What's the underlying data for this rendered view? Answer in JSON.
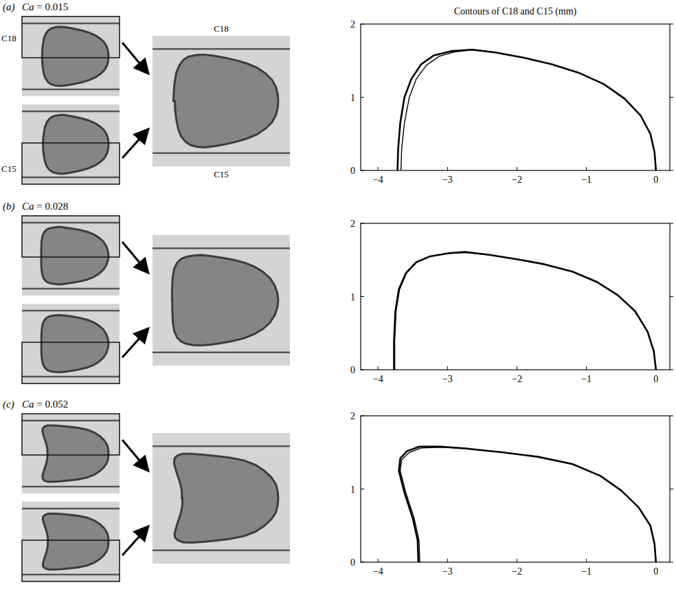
{
  "chart_data": [
    {
      "type": "line",
      "title": "Contours of C18 and C15 (mm)",
      "annotations": [
        "(a)",
        "Ca = 0.015"
      ],
      "xlim": [
        -4.25,
        0.2
      ],
      "ylim": [
        0,
        2
      ],
      "xticks": [
        {
          "value": -4,
          "label": "−4"
        },
        {
          "value": -3,
          "label": "−3"
        },
        {
          "value": -2,
          "label": "−2"
        },
        {
          "value": -1,
          "label": "−1"
        },
        0
      ],
      "yticks": [
        0,
        1,
        2
      ],
      "series": [
        {
          "name": "C18",
          "color": "#000000",
          "x": [
            -3.72,
            -3.71,
            -3.68,
            -3.62,
            -3.52,
            -3.38,
            -3.2,
            -2.95,
            -2.65,
            -2.3,
            -1.9,
            -1.5,
            -1.1,
            -0.75,
            -0.45,
            -0.22,
            -0.08,
            -0.02,
            0
          ],
          "values": [
            0,
            0.3,
            0.65,
            1.0,
            1.25,
            1.45,
            1.57,
            1.63,
            1.65,
            1.61,
            1.54,
            1.45,
            1.33,
            1.18,
            0.98,
            0.75,
            0.5,
            0.25,
            0
          ]
        },
        {
          "name": "C15",
          "color": "#000000",
          "x": [
            -3.67,
            -3.66,
            -3.62,
            -3.55,
            -3.45,
            -3.3,
            -3.12,
            -2.9,
            -2.62,
            -2.3,
            -1.9,
            -1.5,
            -1.1,
            -0.75,
            -0.45,
            -0.22,
            -0.08,
            -0.02,
            0
          ],
          "values": [
            0,
            0.3,
            0.65,
            1.0,
            1.25,
            1.44,
            1.56,
            1.62,
            1.65,
            1.61,
            1.54,
            1.45,
            1.33,
            1.18,
            0.98,
            0.75,
            0.5,
            0.25,
            0
          ]
        }
      ]
    },
    {
      "type": "line",
      "annotations": [
        "(b)",
        "Ca = 0.028"
      ],
      "xlim": [
        -4.25,
        0.2
      ],
      "ylim": [
        0,
        2
      ],
      "xticks": [
        {
          "value": -4,
          "label": "−4"
        },
        {
          "value": -3,
          "label": "−3"
        },
        {
          "value": -2,
          "label": "−2"
        },
        {
          "value": -1,
          "label": "−1"
        },
        0
      ],
      "yticks": [
        0,
        1,
        2
      ],
      "series": [
        {
          "color": "#000000",
          "x": [
            -3.77,
            -3.77,
            -3.75,
            -3.7,
            -3.6,
            -3.45,
            -3.25,
            -3.0,
            -2.75,
            -2.4,
            -2.0,
            -1.6,
            -1.2,
            -0.85,
            -0.55,
            -0.3,
            -0.12,
            -0.03,
            0
          ],
          "values": [
            0,
            0.4,
            0.8,
            1.1,
            1.32,
            1.47,
            1.55,
            1.59,
            1.61,
            1.57,
            1.51,
            1.44,
            1.34,
            1.2,
            1.02,
            0.8,
            0.52,
            0.25,
            0
          ]
        },
        {
          "color": "#000000",
          "x": [
            -3.76,
            -3.76,
            -3.74,
            -3.69,
            -3.59,
            -3.44,
            -3.24,
            -3.0,
            -2.75,
            -2.4,
            -2.0,
            -1.6,
            -1.2,
            -0.85,
            -0.55,
            -0.3,
            -0.12,
            -0.03,
            0
          ],
          "values": [
            0,
            0.4,
            0.8,
            1.1,
            1.32,
            1.47,
            1.55,
            1.59,
            1.6,
            1.57,
            1.51,
            1.44,
            1.34,
            1.2,
            1.02,
            0.8,
            0.52,
            0.25,
            0
          ]
        }
      ]
    },
    {
      "type": "line",
      "annotations": [
        "(c)",
        "Ca = 0.052"
      ],
      "xlim": [
        -4.25,
        0.2
      ],
      "ylim": [
        0,
        2
      ],
      "xticks": [
        {
          "value": -4,
          "label": "−4"
        },
        {
          "value": -3,
          "label": "−3"
        },
        {
          "value": -2,
          "label": "−2"
        },
        {
          "value": -1,
          "label": "−1"
        },
        0
      ],
      "yticks": [
        0,
        1,
        2
      ],
      "series": [
        {
          "color": "#000000",
          "x": [
            -3.42,
            -3.43,
            -3.5,
            -3.62,
            -3.7,
            -3.68,
            -3.58,
            -3.4,
            -3.1,
            -2.7,
            -2.2,
            -1.7,
            -1.2,
            -0.8,
            -0.5,
            -0.25,
            -0.08,
            -0.02,
            0
          ],
          "values": [
            0,
            0.3,
            0.6,
            0.95,
            1.25,
            1.42,
            1.52,
            1.58,
            1.58,
            1.55,
            1.5,
            1.44,
            1.34,
            1.18,
            0.98,
            0.75,
            0.5,
            0.25,
            0
          ]
        },
        {
          "color": "#000000",
          "x": [
            -3.4,
            -3.41,
            -3.48,
            -3.6,
            -3.68,
            -3.66,
            -3.55,
            -3.38,
            -3.1,
            -2.7,
            -2.2,
            -1.7,
            -1.2,
            -0.8,
            -0.5,
            -0.25,
            -0.08,
            -0.02,
            0
          ],
          "values": [
            0,
            0.3,
            0.6,
            0.95,
            1.25,
            1.4,
            1.5,
            1.56,
            1.57,
            1.55,
            1.5,
            1.44,
            1.34,
            1.18,
            0.98,
            0.75,
            0.5,
            0.25,
            0
          ]
        }
      ]
    }
  ]
}
